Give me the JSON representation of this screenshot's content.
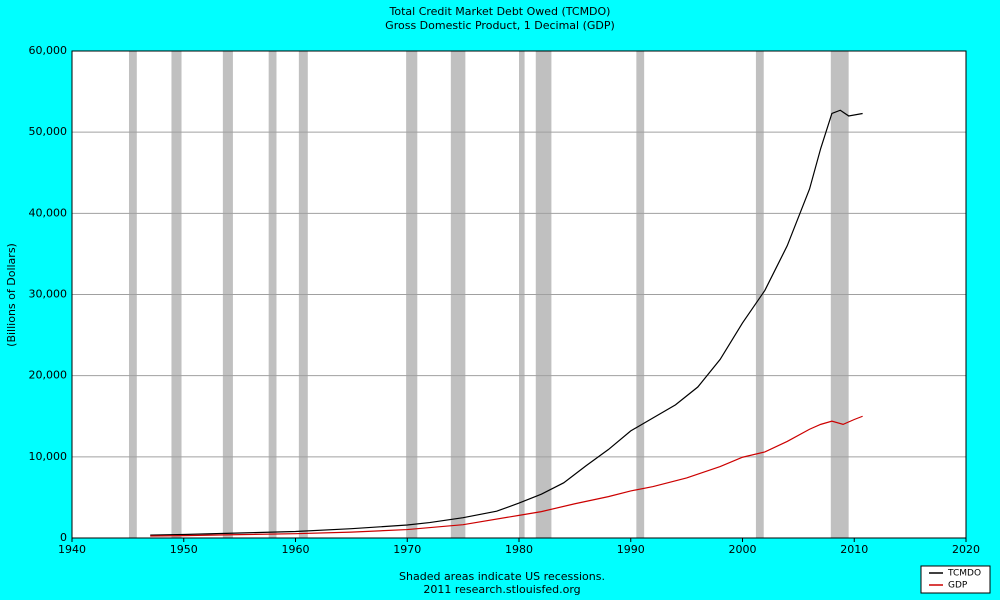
{
  "chart_data": {
    "type": "line",
    "title": "Total Credit Market Debt Owed (TCMDO)",
    "subtitle": "Gross Domestic Product, 1 Decimal (GDP)",
    "y_label": "(Billions of Dollars)",
    "note": "Shaded areas indicate US recessions.",
    "source": "2011 research.stlouisfed.org",
    "xlim": [
      1940,
      2020
    ],
    "xticks": [
      1940,
      1950,
      1960,
      1970,
      1980,
      1990,
      2000,
      2010,
      2020
    ],
    "ylim": [
      0,
      60000
    ],
    "yticks": [
      0,
      {
        "value": 10000,
        "label": "10,000"
      },
      {
        "value": 20000,
        "label": "20,000"
      },
      {
        "value": 30000,
        "label": "30,000"
      },
      {
        "value": 40000,
        "label": "40,000"
      },
      {
        "value": 50000,
        "label": "50,000"
      },
      {
        "value": 60000,
        "label": "60,000"
      }
    ],
    "grid": true,
    "legend": "bottom-right",
    "recession_color": "#c0c0c0",
    "recessions": [
      [
        1945.1,
        1945.8
      ],
      [
        1948.9,
        1949.8
      ],
      [
        1953.5,
        1954.4
      ],
      [
        1957.6,
        1958.3
      ],
      [
        1960.3,
        1961.1
      ],
      [
        1969.9,
        1970.9
      ],
      [
        1973.9,
        1975.2
      ],
      [
        1980.0,
        1980.5
      ],
      [
        1981.5,
        1982.9
      ],
      [
        1990.5,
        1991.2
      ],
      [
        2001.2,
        2001.9
      ],
      [
        2007.9,
        2009.5
      ]
    ],
    "series": [
      {
        "name": "TCMDO",
        "color": "#000000",
        "x": [
          1947,
          1950,
          1955,
          1960,
          1965,
          1970,
          1972,
          1975,
          1978,
          1980,
          1982,
          1984,
          1986,
          1988,
          1990,
          1992,
          1994,
          1996,
          1998,
          2000,
          2002,
          2004,
          2006,
          2007,
          2008,
          2008.75,
          2009.5,
          2010.75
        ],
        "values": [
          360,
          430,
          620,
          800,
          1150,
          1600,
          1900,
          2500,
          3300,
          4300,
          5400,
          6800,
          8900,
          10900,
          13200,
          14800,
          16400,
          18600,
          22000,
          26500,
          30500,
          36000,
          43000,
          48000,
          52300,
          52700,
          52000,
          52300
        ]
      },
      {
        "name": "GDP",
        "color": "#cc0000",
        "x": [
          1947,
          1950,
          1955,
          1960,
          1965,
          1970,
          1975,
          1980,
          1982,
          1985,
          1988,
          1990,
          1992,
          1995,
          1998,
          2000,
          2002,
          2004,
          2006,
          2007,
          2008,
          2009,
          2010,
          2010.75
        ],
        "values": [
          244,
          290,
          415,
          530,
          720,
          1040,
          1640,
          2790,
          3250,
          4220,
          5100,
          5800,
          6340,
          7400,
          8800,
          9950,
          10600,
          11900,
          13400,
          14000,
          14400,
          14000,
          14600,
          15000
        ]
      }
    ]
  }
}
